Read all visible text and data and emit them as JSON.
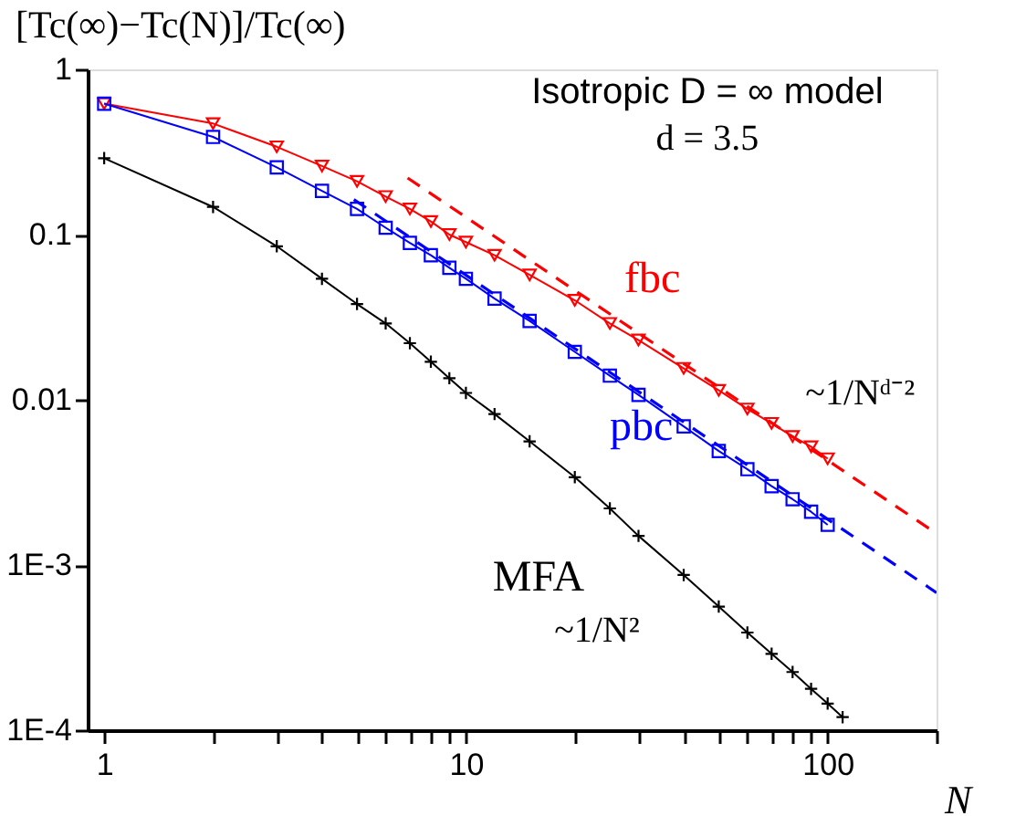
{
  "chart_data": {
    "type": "line",
    "xlabel": "N",
    "ylabel": "[Tc(∞)−Tc(N)]/Tc(∞)",
    "log": "xy",
    "xlim": [
      0.9,
      200
    ],
    "ylim": [
      0.0001,
      1
    ],
    "xticks": [
      1,
      {
        "value": 2,
        "label": null
      },
      {
        "value": 3,
        "label": null
      },
      {
        "value": 4,
        "label": null
      },
      {
        "value": 5,
        "label": null
      },
      {
        "value": 6,
        "label": null
      },
      {
        "value": 7,
        "label": null
      },
      {
        "value": 8,
        "label": null
      },
      {
        "value": 9,
        "label": null
      },
      10,
      {
        "value": 20,
        "label": null
      },
      {
        "value": 30,
        "label": null
      },
      {
        "value": 40,
        "label": null
      },
      {
        "value": 50,
        "label": null
      },
      {
        "value": 60,
        "label": null
      },
      {
        "value": 70,
        "label": null
      },
      {
        "value": 80,
        "label": null
      },
      {
        "value": 90,
        "label": null
      },
      100,
      {
        "value": 200,
        "label": null
      }
    ],
    "yticks": [
      {
        "value": 0.0001,
        "label": "1E-4"
      },
      {
        "value": 0.001,
        "label": "1E-3"
      },
      0.01,
      0.1,
      1
    ],
    "series": [
      {
        "name": "fbc",
        "color": "#ff0000",
        "marker": "triangle",
        "line_style": "solid",
        "x": [
          1,
          2,
          3,
          4,
          5,
          6,
          7,
          8,
          9,
          10,
          12,
          15,
          20,
          25,
          30,
          40,
          50,
          60,
          70,
          80,
          90,
          100
        ],
        "values": [
          0.62,
          0.47,
          0.34,
          0.26,
          0.21,
          0.17,
          0.143,
          0.12,
          0.1,
          0.09,
          0.075,
          0.057,
          0.04,
          0.029,
          0.023,
          0.0155,
          0.0114,
          0.0088,
          0.0072,
          0.006,
          0.0052,
          0.0044
        ]
      },
      {
        "name": "pbc",
        "color": "#0000ff",
        "marker": "square",
        "line_style": "solid",
        "x": [
          1,
          2,
          3,
          4,
          5,
          6,
          7,
          8,
          9,
          10,
          12,
          15,
          20,
          25,
          30,
          40,
          50,
          60,
          70,
          80,
          90,
          100
        ],
        "values": [
          0.62,
          0.39,
          0.255,
          0.184,
          0.143,
          0.11,
          0.089,
          0.075,
          0.063,
          0.054,
          0.041,
          0.03,
          0.0195,
          0.014,
          0.0107,
          0.0069,
          0.0049,
          0.0038,
          0.003,
          0.0025,
          0.0021,
          0.00175
        ]
      },
      {
        "name": "MFA",
        "color": "#000000",
        "marker": "cross",
        "line_style": "solid",
        "x": [
          1,
          2,
          3,
          4,
          5,
          6,
          7,
          8,
          9,
          10,
          12,
          15,
          20,
          25,
          30,
          40,
          50,
          60,
          70,
          80,
          90,
          100,
          110
        ],
        "values": [
          0.29,
          0.147,
          0.085,
          0.054,
          0.038,
          0.029,
          0.022,
          0.017,
          0.0135,
          0.011,
          0.0082,
          0.0056,
          0.0034,
          0.0022,
          0.0015,
          0.00087,
          0.00056,
          0.00039,
          0.00029,
          0.000225,
          0.000178,
          0.000145,
          0.00012
        ]
      },
      {
        "type": "line",
        "color": "#ff0000",
        "marker": "none",
        "line_style": "dashed",
        "x": [
          6.9,
          200
        ],
        "values": [
          0.22,
          0.00155
        ]
      },
      {
        "type": "line",
        "color": "#0000ff",
        "marker": "none",
        "line_style": "dashed",
        "x": [
          4.9,
          200
        ],
        "values": [
          0.163,
          0.00068
        ]
      }
    ],
    "annotations": [
      "Isotropic D = ∞ model",
      "d = 3.5",
      "~1/Nᵈ⁻²",
      "~1/N²"
    ]
  }
}
